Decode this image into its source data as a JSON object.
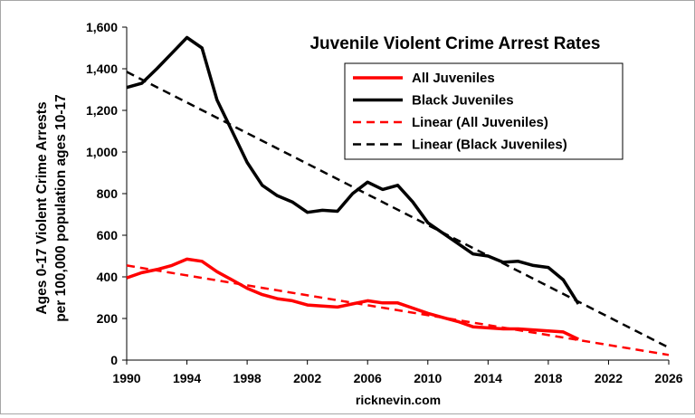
{
  "chart_data": {
    "type": "line",
    "title": "Juvenile Violent Crime Arrest Rates",
    "ylabel_lines": [
      "Ages 0-17 Violent Crime Arrests",
      "per 100,000 population ages 10-17"
    ],
    "xlabel": "ricknevin.com",
    "xlim": [
      1990,
      2026
    ],
    "ylim": [
      0,
      1600
    ],
    "xticks": [
      1990,
      1994,
      1998,
      2002,
      2006,
      2010,
      2014,
      2018,
      2022,
      2026
    ],
    "xtick_labels": [
      "1990",
      "1994",
      "1998",
      "2002",
      "2006",
      "2010",
      "2014",
      "2018",
      "2022",
      "2026"
    ],
    "yticks": [
      0,
      200,
      400,
      600,
      800,
      1000,
      1200,
      1400,
      1600
    ],
    "ytick_labels": [
      "0",
      "200",
      "400",
      "600",
      "800",
      "1,000",
      "1,200",
      "1,400",
      "1,600"
    ],
    "legend_position": "top-right",
    "grid": false,
    "series": [
      {
        "name": "All Juveniles",
        "color": "#ff0000",
        "style": "solid",
        "x": [
          1990,
          1991,
          1992,
          1993,
          1994,
          1995,
          1996,
          1997,
          1998,
          1999,
          2000,
          2001,
          2002,
          2003,
          2004,
          2005,
          2006,
          2007,
          2008,
          2009,
          2010,
          2011,
          2012,
          2013,
          2014,
          2015,
          2016,
          2017,
          2018,
          2019,
          2020
        ],
        "y": [
          395,
          420,
          435,
          455,
          485,
          475,
          425,
          385,
          345,
          315,
          295,
          285,
          265,
          260,
          255,
          270,
          285,
          275,
          275,
          250,
          225,
          205,
          185,
          160,
          155,
          150,
          150,
          145,
          140,
          135,
          100
        ]
      },
      {
        "name": "Black Juveniles",
        "color": "#000000",
        "style": "solid",
        "x": [
          1990,
          1991,
          1992,
          1993,
          1994,
          1995,
          1996,
          1997,
          1998,
          1999,
          2000,
          2001,
          2002,
          2003,
          2004,
          2005,
          2006,
          2007,
          2008,
          2009,
          2010,
          2011,
          2012,
          2013,
          2014,
          2015,
          2016,
          2017,
          2018,
          2019,
          2020
        ],
        "y": [
          1310,
          1330,
          1400,
          1475,
          1550,
          1500,
          1250,
          1100,
          950,
          840,
          790,
          760,
          710,
          720,
          715,
          800,
          855,
          820,
          840,
          760,
          660,
          610,
          560,
          510,
          500,
          470,
          475,
          455,
          445,
          385,
          270
        ]
      },
      {
        "name": "Linear (All Juveniles)",
        "color": "#ff0000",
        "style": "dashed",
        "x": [
          1990,
          2026
        ],
        "y": [
          455,
          25
        ]
      },
      {
        "name": "Linear (Black Juveniles)",
        "color": "#000000",
        "style": "dashed",
        "x": [
          1990,
          2026
        ],
        "y": [
          1385,
          60
        ]
      }
    ]
  }
}
